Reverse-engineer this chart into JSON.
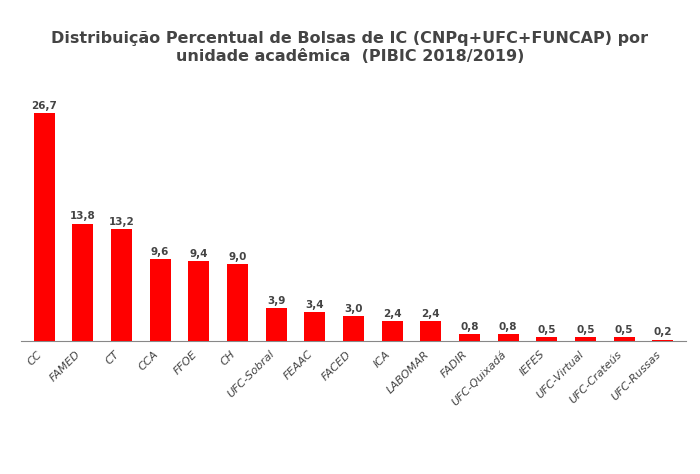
{
  "title": "Distribuição Percentual de Bolsas de IC (CNPq+UFC+FUNCAP) por\nunidade acadêmica  (PIBIC 2018/2019)",
  "categories": [
    "CC",
    "FAMED",
    "CT",
    "CCA",
    "FFOE",
    "CH",
    "UFC-Sobral",
    "FEAAC",
    "FACED",
    "ICA",
    "LABOMAR",
    "FADIR",
    "UFC-Quixadá",
    "IEFES",
    "UFC-Virtual",
    "UFC-Crateús",
    "UFC-Russas"
  ],
  "values": [
    26.7,
    13.8,
    13.2,
    9.6,
    9.4,
    9.0,
    3.9,
    3.4,
    3.0,
    2.4,
    2.4,
    0.8,
    0.8,
    0.5,
    0.5,
    0.5,
    0.2
  ],
  "bar_color": "#FF0000",
  "label_color": "#444444",
  "title_color": "#444444",
  "background_color": "#FFFFFF",
  "ylim": [
    0,
    30
  ],
  "title_fontsize": 11.5,
  "label_fontsize": 7.5,
  "tick_fontsize": 8.0
}
